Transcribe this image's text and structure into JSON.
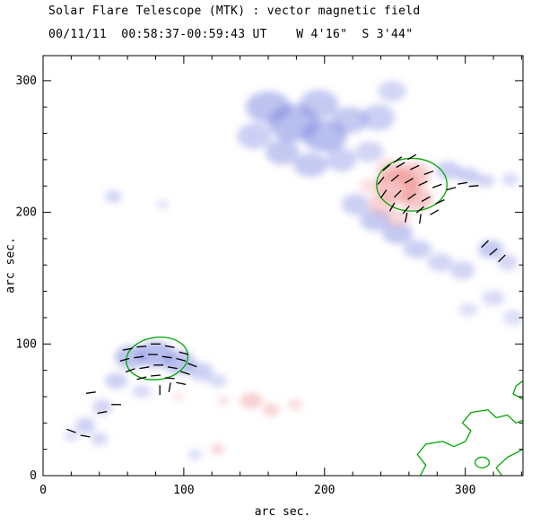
{
  "header": {
    "title": "Solar Flare Telescope (MTK) : vector magnetic field",
    "subtitle": "00/11/11  00:58:37-00:59:43 UT    W 4'16\"  S 3'44\""
  },
  "chart_data": {
    "type": "heatmap",
    "title": "Solar Flare Telescope (MTK) : vector magnetic field",
    "subtitle": "00/11/11  00:58:37-00:59:43 UT    W 4'16\"  S 3'44\"",
    "xlabel": "arc sec.",
    "ylabel": "arc sec.",
    "xlim": [
      0,
      341
    ],
    "ylim": [
      0,
      319
    ],
    "xticks": [
      0,
      100,
      200,
      300
    ],
    "yticks": [
      0,
      100,
      200,
      300
    ],
    "minor_tick_step": 20,
    "grid": false,
    "legend": false,
    "colors": {
      "negative": "#7d88e0",
      "positive": "#ee8585",
      "contour": "#00a800",
      "vector": "#000000",
      "axis": "#000000",
      "background": "#ffffff"
    },
    "negative_blobs": [
      [
        160,
        280,
        16,
        12,
        0.5
      ],
      [
        178,
        268,
        18,
        14,
        0.55
      ],
      [
        196,
        282,
        14,
        11,
        0.45
      ],
      [
        200,
        258,
        16,
        12,
        0.55
      ],
      [
        218,
        270,
        13,
        10,
        0.45
      ],
      [
        238,
        272,
        12,
        10,
        0.4
      ],
      [
        248,
        292,
        10,
        8,
        0.35
      ],
      [
        170,
        246,
        12,
        10,
        0.45
      ],
      [
        190,
        236,
        12,
        9,
        0.45
      ],
      [
        212,
        240,
        11,
        9,
        0.4
      ],
      [
        150,
        258,
        12,
        10,
        0.4
      ],
      [
        232,
        246,
        10,
        8,
        0.35
      ],
      [
        288,
        232,
        9,
        7,
        0.4
      ],
      [
        302,
        228,
        8,
        6,
        0.4
      ],
      [
        314,
        224,
        7,
        5,
        0.35
      ],
      [
        332,
        225,
        6,
        5,
        0.3
      ],
      [
        222,
        206,
        10,
        8,
        0.4
      ],
      [
        236,
        194,
        11,
        8,
        0.45
      ],
      [
        252,
        184,
        11,
        8,
        0.45
      ],
      [
        266,
        172,
        10,
        7,
        0.4
      ],
      [
        282,
        162,
        9,
        7,
        0.35
      ],
      [
        298,
        156,
        9,
        7,
        0.35
      ],
      [
        318,
        172,
        9,
        7,
        0.45
      ],
      [
        330,
        162,
        7,
        6,
        0.35
      ],
      [
        320,
        135,
        8,
        6,
        0.3
      ],
      [
        334,
        120,
        7,
        6,
        0.28
      ],
      [
        302,
        126,
        7,
        5,
        0.26
      ],
      [
        50,
        212,
        6,
        5,
        0.35
      ],
      [
        85,
        206,
        4,
        3,
        0.3
      ],
      [
        62,
        90,
        11,
        9,
        0.5
      ],
      [
        80,
        92,
        13,
        10,
        0.55
      ],
      [
        97,
        86,
        11,
        9,
        0.5
      ],
      [
        112,
        79,
        9,
        7,
        0.4
      ],
      [
        124,
        72,
        7,
        5,
        0.3
      ],
      [
        52,
        72,
        8,
        6,
        0.4
      ],
      [
        42,
        52,
        7,
        6,
        0.35
      ],
      [
        30,
        38,
        7,
        6,
        0.4
      ],
      [
        40,
        28,
        6,
        5,
        0.35
      ],
      [
        20,
        30,
        5,
        4,
        0.3
      ],
      [
        70,
        64,
        7,
        5,
        0.3
      ],
      [
        108,
        16,
        5,
        4,
        0.3
      ]
    ],
    "positive_blobs": [
      [
        252,
        220,
        15,
        13,
        0.5
      ],
      [
        263,
        228,
        12,
        10,
        0.45
      ],
      [
        266,
        210,
        11,
        9,
        0.45
      ],
      [
        246,
        232,
        9,
        8,
        0.35
      ],
      [
        240,
        206,
        9,
        8,
        0.35
      ],
      [
        252,
        196,
        9,
        7,
        0.3
      ],
      [
        232,
        220,
        7,
        6,
        0.25
      ],
      [
        148,
        57,
        8,
        6,
        0.4
      ],
      [
        162,
        50,
        6,
        5,
        0.35
      ],
      [
        179,
        54,
        5,
        4,
        0.3
      ],
      [
        128,
        57,
        4,
        3,
        0.3
      ],
      [
        124,
        20,
        5,
        4,
        0.35
      ],
      [
        96,
        60,
        4,
        3,
        0.25
      ]
    ],
    "contours": {
      "ellipses": [
        [
          81,
          89,
          22,
          16,
          -8
        ],
        [
          262,
          221,
          25,
          20,
          0
        ]
      ],
      "loops": [
        [
          312,
          10,
          5,
          4
        ]
      ],
      "paths": [
        [
          [
            268,
            0
          ],
          [
            272,
            8
          ],
          [
            266,
            16
          ],
          [
            272,
            24
          ],
          [
            284,
            26
          ],
          [
            292,
            22
          ],
          [
            300,
            26
          ],
          [
            304,
            34
          ],
          [
            298,
            40
          ],
          [
            304,
            48
          ],
          [
            316,
            50
          ],
          [
            322,
            44
          ],
          [
            330,
            46
          ],
          [
            336,
            40
          ],
          [
            341,
            42
          ]
        ],
        [
          [
            341,
            20
          ],
          [
            330,
            14
          ],
          [
            322,
            6
          ],
          [
            326,
            0
          ]
        ],
        [
          [
            341,
            58
          ],
          [
            334,
            62
          ],
          [
            336,
            68
          ],
          [
            341,
            72
          ]
        ]
      ]
    },
    "vectors": {
      "len": 7,
      "segments": [
        [
          60,
          96,
          10
        ],
        [
          70,
          98,
          5
        ],
        [
          80,
          100,
          0
        ],
        [
          90,
          98,
          -10
        ],
        [
          100,
          93,
          -15
        ],
        [
          58,
          88,
          15
        ],
        [
          68,
          90,
          8
        ],
        [
          78,
          92,
          0
        ],
        [
          88,
          90,
          -8
        ],
        [
          98,
          88,
          -15
        ],
        [
          106,
          84,
          -20
        ],
        [
          62,
          80,
          20
        ],
        [
          72,
          82,
          10
        ],
        [
          82,
          84,
          0
        ],
        [
          92,
          82,
          -10
        ],
        [
          101,
          78,
          -18
        ],
        [
          70,
          74,
          15
        ],
        [
          80,
          76,
          5
        ],
        [
          90,
          74,
          -5
        ],
        [
          98,
          70,
          -12
        ],
        [
          83,
          65,
          90
        ],
        [
          90,
          67,
          80
        ],
        [
          20,
          34,
          -20
        ],
        [
          30,
          30,
          -10
        ],
        [
          42,
          48,
          10
        ],
        [
          52,
          54,
          0
        ],
        [
          34,
          63,
          8
        ],
        [
          244,
          234,
          40
        ],
        [
          254,
          236,
          30
        ],
        [
          264,
          234,
          25
        ],
        [
          274,
          230,
          20
        ],
        [
          240,
          224,
          50
        ],
        [
          250,
          226,
          40
        ],
        [
          260,
          224,
          30
        ],
        [
          270,
          222,
          25
        ],
        [
          280,
          220,
          20
        ],
        [
          242,
          214,
          55
        ],
        [
          252,
          214,
          45
        ],
        [
          262,
          212,
          35
        ],
        [
          272,
          210,
          30
        ],
        [
          282,
          208,
          25
        ],
        [
          248,
          204,
          60
        ],
        [
          258,
          202,
          50
        ],
        [
          268,
          202,
          40
        ],
        [
          278,
          200,
          30
        ],
        [
          252,
          240,
          35
        ],
        [
          262,
          242,
          30
        ],
        [
          290,
          218,
          15
        ],
        [
          298,
          222,
          10
        ],
        [
          306,
          220,
          5
        ],
        [
          258,
          196,
          78
        ],
        [
          268,
          195,
          82
        ],
        [
          314,
          176,
          45
        ],
        [
          320,
          170,
          40
        ],
        [
          326,
          165,
          45
        ]
      ]
    }
  }
}
